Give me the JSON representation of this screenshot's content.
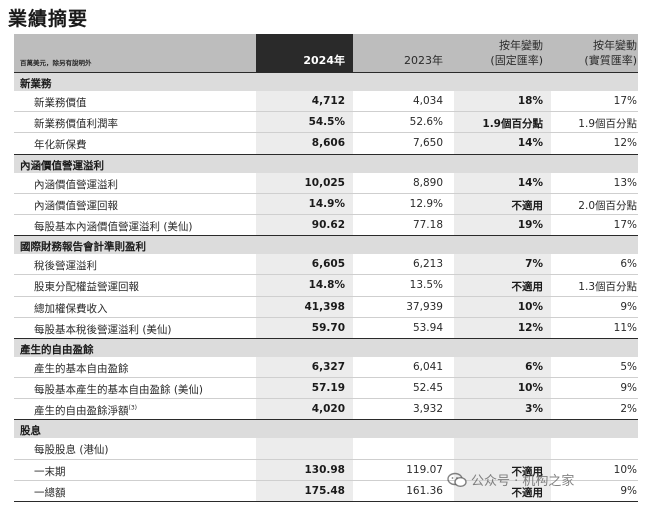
{
  "title": "業績摘要",
  "header": {
    "note": "百萬美元，除另有說明外",
    "y2024": "2024年",
    "y2023": "2023年",
    "const_line1": "按年變動",
    "const_line2": "(固定匯率)",
    "actual_line1": "按年變動",
    "actual_line2": "(實質匯率)"
  },
  "sections": [
    {
      "title": "新業務",
      "rows": [
        {
          "label": "新業務價值",
          "y2024": "4,712",
          "y2023": "4,034",
          "const": "18%",
          "actual": "17%"
        },
        {
          "label": "新業務價值利潤率",
          "y2024": "54.5%",
          "y2023": "52.6%",
          "const": "1.9個百分點",
          "actual": "1.9個百分點"
        },
        {
          "label": "年化新保費",
          "y2024": "8,606",
          "y2023": "7,650",
          "const": "14%",
          "actual": "12%"
        }
      ]
    },
    {
      "title": "內涵價值營運溢利",
      "rows": [
        {
          "label": "內涵價值營運溢利",
          "y2024": "10,025",
          "y2023": "8,890",
          "const": "14%",
          "actual": "13%"
        },
        {
          "label": "內涵價值營運回報",
          "y2024": "14.9%",
          "y2023": "12.9%",
          "const": "不適用",
          "actual": "2.0個百分點"
        },
        {
          "label": "每股基本內涵價值營運溢利 (美仙)",
          "y2024": "90.62",
          "y2023": "77.18",
          "const": "19%",
          "actual": "17%"
        }
      ]
    },
    {
      "title": "國際財務報告會計準則盈利",
      "rows": [
        {
          "label": "稅後營運溢利",
          "y2024": "6,605",
          "y2023": "6,213",
          "const": "7%",
          "actual": "6%"
        },
        {
          "label": "股東分配權益營運回報",
          "y2024": "14.8%",
          "y2023": "13.5%",
          "const": "不適用",
          "actual": "1.3個百分點"
        },
        {
          "label": "總加權保費收入",
          "y2024": "41,398",
          "y2023": "37,939",
          "const": "10%",
          "actual": "9%"
        },
        {
          "label": "每股基本稅後營運溢利 (美仙)",
          "y2024": "59.70",
          "y2023": "53.94",
          "const": "12%",
          "actual": "11%"
        }
      ]
    },
    {
      "title": "產生的自由盈餘",
      "rows": [
        {
          "label": "產生的基本自由盈餘",
          "y2024": "6,327",
          "y2023": "6,041",
          "const": "6%",
          "actual": "5%"
        },
        {
          "label": "每股基本產生的基本自由盈餘 (美仙)",
          "y2024": "57.19",
          "y2023": "52.45",
          "const": "10%",
          "actual": "9%"
        },
        {
          "label": "產生的自由盈餘淨額",
          "sup": "(3)",
          "y2024": "4,020",
          "y2023": "3,932",
          "const": "3%",
          "actual": "2%"
        }
      ]
    },
    {
      "title": "股息",
      "rows": [
        {
          "label": "每股股息 (港仙)",
          "y2024": "",
          "y2023": "",
          "const": "",
          "actual": ""
        },
        {
          "label": "一末期",
          "y2024": "130.98",
          "y2023": "119.07",
          "const": "不適用",
          "actual": "10%"
        },
        {
          "label": "一總額",
          "y2024": "175.48",
          "y2023": "161.36",
          "const": "不適用",
          "actual": "9%"
        }
      ]
    }
  ],
  "watermark": "公众号 · 机构之家"
}
